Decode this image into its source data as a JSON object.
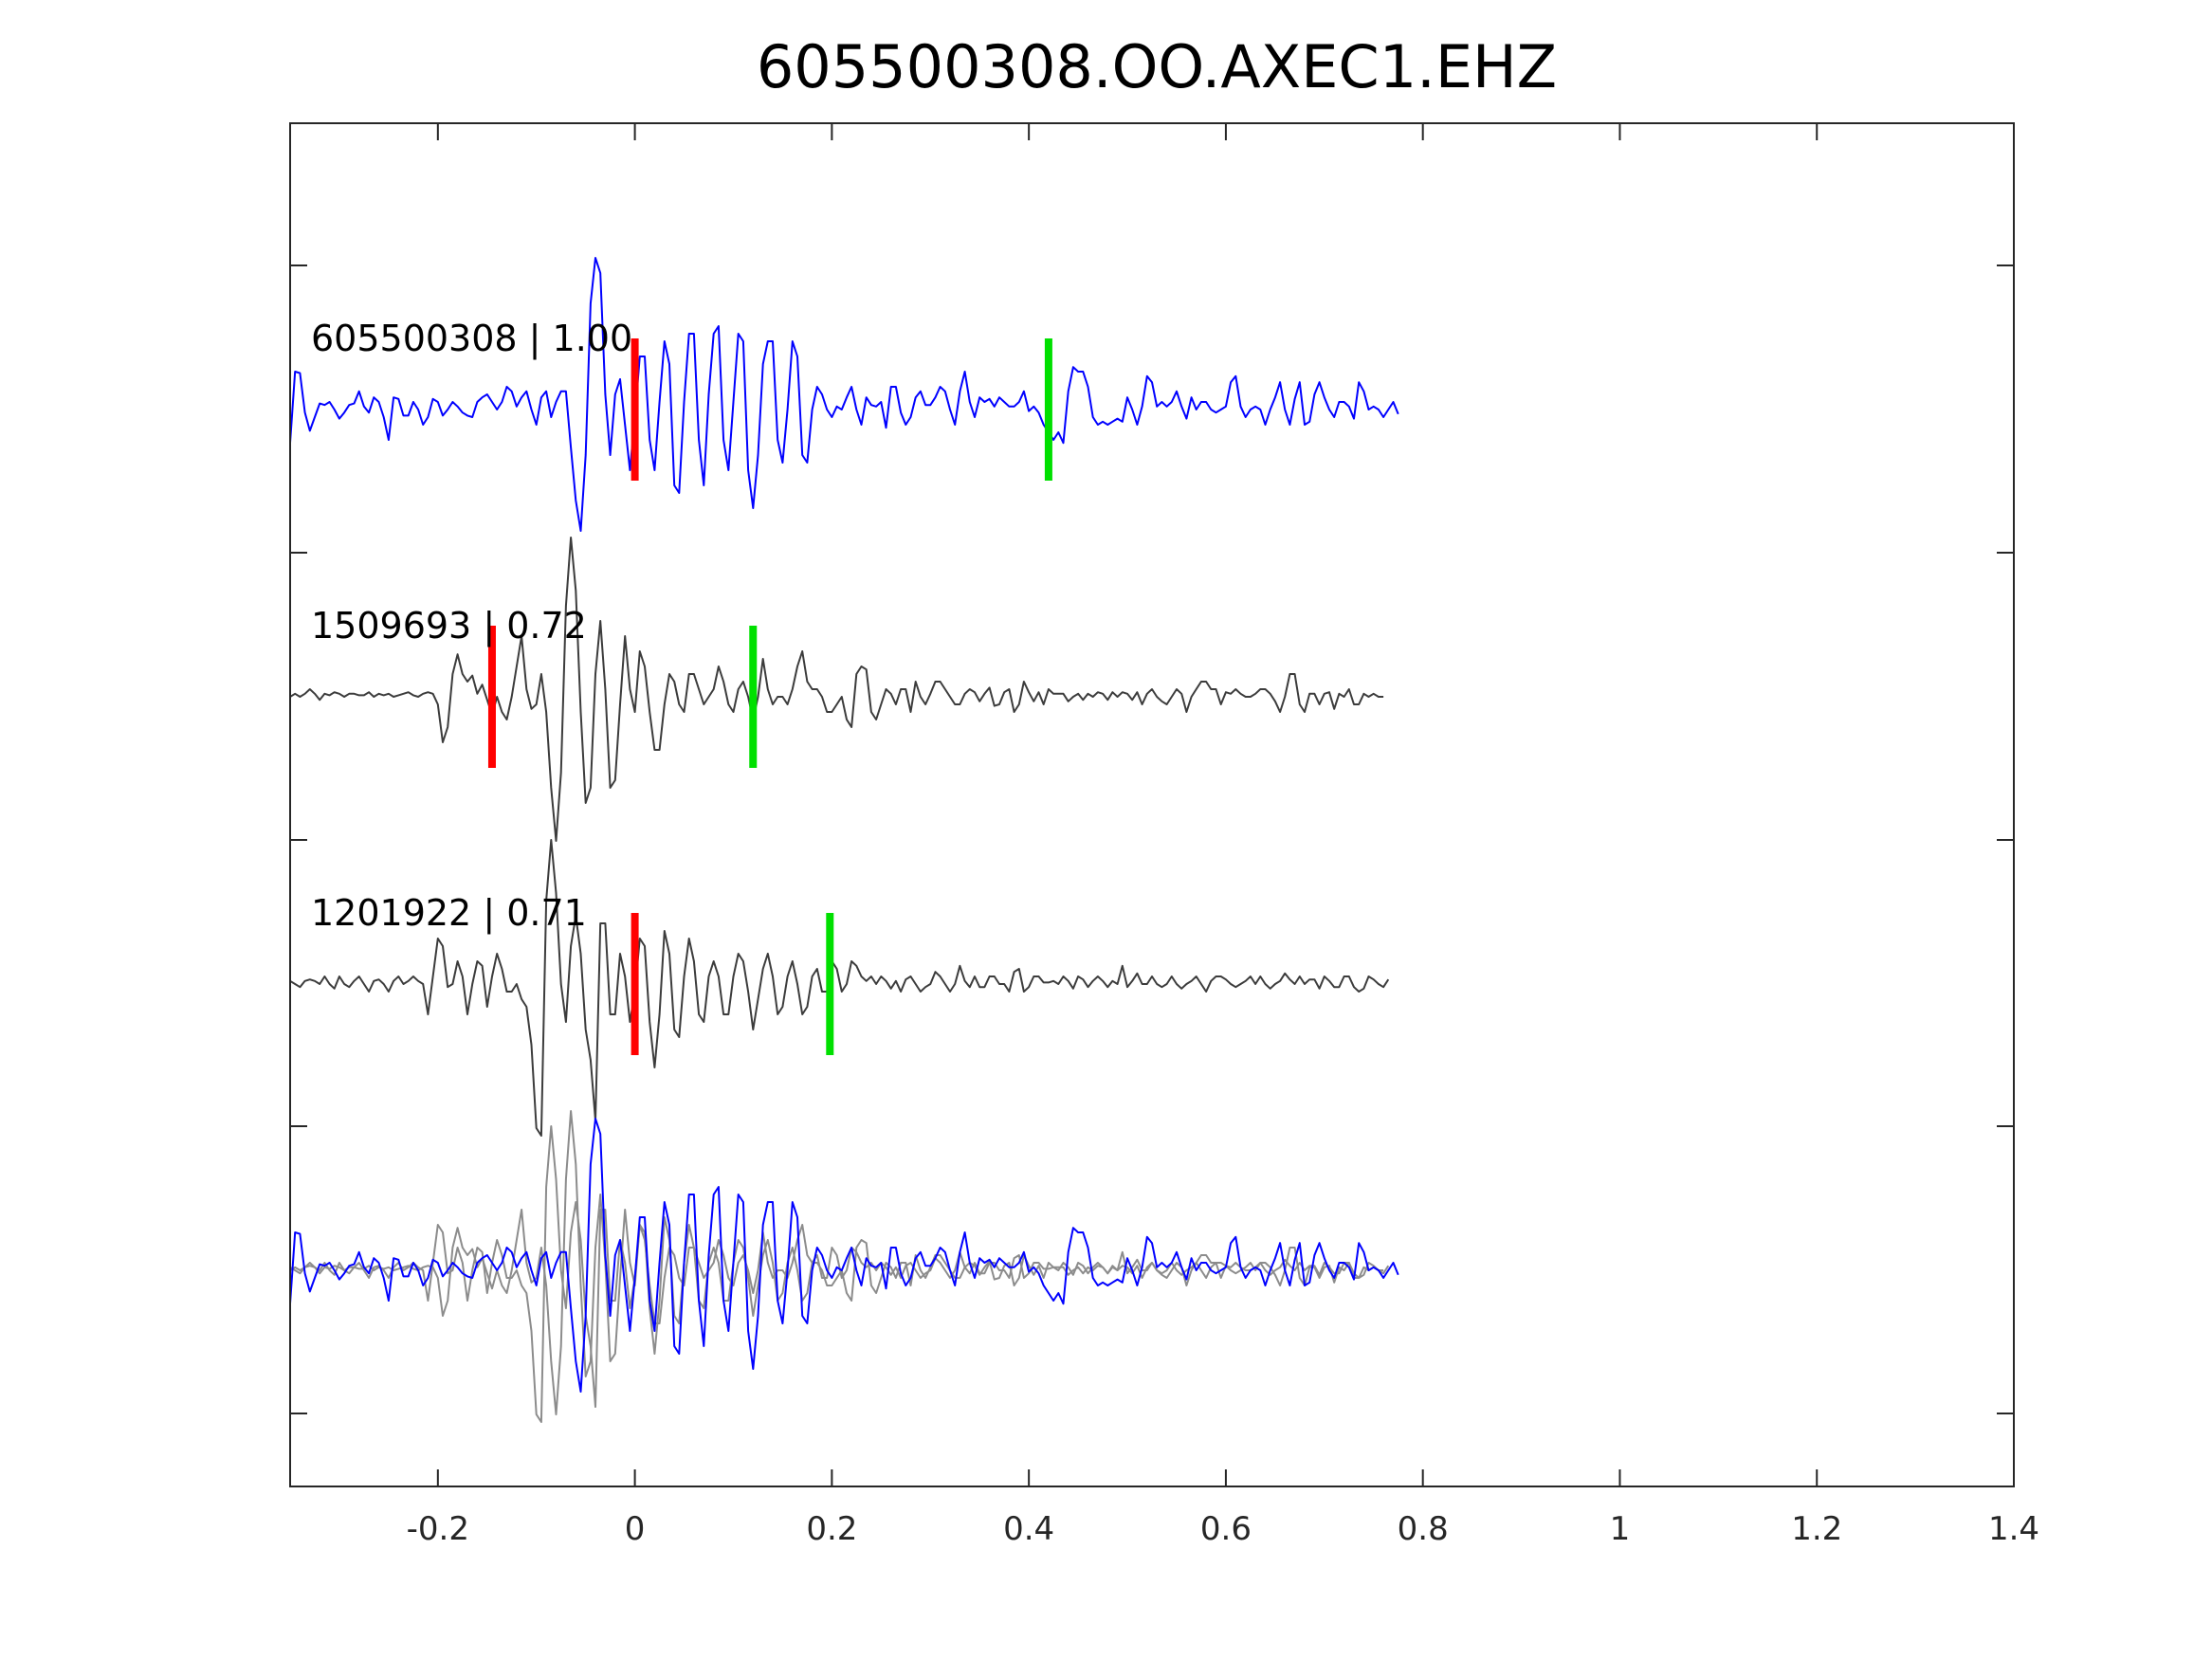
{
  "chart_data": {
    "type": "line",
    "title": "605500308.OO.AXEC1.EHZ",
    "xlabel": "",
    "ylabel": "",
    "xlim": [
      -0.35,
      1.4
    ],
    "x_ticks": [
      -0.2,
      0,
      0.2,
      0.4,
      0.6,
      0.8,
      1,
      1.2,
      1.4
    ],
    "x_tick_labels": [
      "-0.2",
      "0",
      "0.2",
      "0.4",
      "0.6",
      "0.8",
      "1",
      "1.2",
      "1.4"
    ],
    "grid": false,
    "sample_interval": 0.005,
    "colors": {
      "template": "#0000ff",
      "match": "#3c3c3c",
      "overlay_match": "#8c8c8c",
      "p_pick": "#ff0000",
      "s_pick": "#00e000",
      "axes": "#262626"
    },
    "panels": [
      {
        "label": "605500308 | 1.00",
        "event_id": "605500308",
        "correlation": 1.0,
        "trace_color": "template",
        "p_pick": 0.0,
        "s_pick": 0.42,
        "waveform_ref": "template"
      },
      {
        "label": "1509693 | 0.72",
        "event_id": "1509693",
        "correlation": 0.72,
        "trace_color": "match",
        "p_pick": -0.145,
        "s_pick": 0.12,
        "waveform_ref": "match_1509693"
      },
      {
        "label": "1201922 | 0.71",
        "event_id": "1201922",
        "correlation": 0.71,
        "trace_color": "match",
        "p_pick": 0.0,
        "s_pick": 0.198,
        "waveform_ref": "match_1201922"
      },
      {
        "label": "",
        "overlay": true,
        "trace_color": "template",
        "waveform_ref": "overlay"
      }
    ],
    "waveforms": {
      "template": {
        "x_start": -0.35,
        "dx": 0.005,
        "values": [
          -0.22,
          0.25,
          0.24,
          -0.02,
          -0.14,
          -0.05,
          0.04,
          0.03,
          0.05,
          0.0,
          -0.06,
          -0.02,
          0.03,
          0.04,
          0.12,
          0.02,
          -0.02,
          0.08,
          0.05,
          -0.05,
          -0.2,
          0.08,
          0.07,
          -0.04,
          -0.04,
          0.05,
          0.0,
          -0.1,
          -0.05,
          0.07,
          0.05,
          -0.04,
          0.0,
          0.05,
          0.02,
          -0.02,
          -0.04,
          -0.05,
          0.05,
          0.08,
          0.1,
          0.05,
          0.0,
          0.05,
          0.15,
          0.12,
          0.02,
          0.08,
          0.12,
          0.0,
          -0.1,
          0.08,
          0.12,
          -0.05,
          0.05,
          0.12,
          0.12,
          -0.25,
          -0.6,
          -0.8,
          -0.3,
          0.7,
          1.0,
          0.9,
          0.1,
          -0.3,
          0.1,
          0.2,
          -0.1,
          -0.4,
          -0.05,
          0.35,
          0.35,
          -0.2,
          -0.4,
          0.05,
          0.45,
          0.3,
          -0.5,
          -0.55,
          0.05,
          0.5,
          0.5,
          -0.2,
          -0.5,
          0.1,
          0.5,
          0.55,
          -0.2,
          -0.4,
          0.05,
          0.5,
          0.45,
          -0.4,
          -0.65,
          -0.3,
          0.3,
          0.45,
          0.45,
          -0.2,
          -0.35,
          0.0,
          0.45,
          0.35,
          -0.3,
          -0.35,
          0.0,
          0.15,
          0.1,
          0.0,
          -0.05,
          0.02,
          0.0,
          0.08,
          0.15,
          0.0,
          -0.1,
          0.08,
          0.03,
          0.02,
          0.05,
          -0.12,
          0.15,
          0.15,
          -0.02,
          -0.1,
          -0.05,
          0.08,
          0.12,
          0.03,
          0.03,
          0.08,
          0.15,
          0.12,
          0.0,
          -0.1,
          0.12,
          0.25,
          0.05,
          -0.05,
          0.08,
          0.05,
          0.07,
          0.02,
          0.08,
          0.05,
          0.02,
          0.02,
          0.05,
          0.12,
          -0.01,
          0.02,
          -0.02,
          -0.1,
          -0.15,
          -0.2,
          -0.15,
          -0.22,
          0.12,
          0.28,
          0.25,
          0.25,
          0.15,
          -0.05,
          -0.1,
          -0.08,
          -0.1,
          -0.08,
          -0.06,
          -0.08,
          0.08,
          0.0,
          -0.1,
          0.02,
          0.22,
          0.18,
          0.02,
          0.05,
          0.02,
          0.05,
          0.12,
          0.02,
          -0.06,
          0.08,
          0.0,
          0.05,
          0.05,
          0.0,
          -0.02,
          0.0,
          0.02,
          0.18,
          0.22,
          0.02,
          -0.05,
          0.0,
          0.02,
          0.0,
          -0.1,
          0.0,
          0.08,
          0.18,
          0.0,
          -0.1,
          0.07,
          0.18,
          -0.1,
          -0.08,
          0.1,
          0.18,
          0.08,
          0.0,
          -0.05,
          0.05,
          0.05,
          0.02,
          -0.06,
          0.18,
          0.12,
          0.0,
          0.02,
          0.0,
          -0.05,
          0.0,
          0.05,
          -0.03
        ]
      },
      "match_1509693": {
        "x_start": -0.35,
        "dx": 0.005,
        "values": [
          0.0,
          0.02,
          0.0,
          0.02,
          0.05,
          0.02,
          -0.02,
          0.02,
          0.01,
          0.03,
          0.02,
          0.0,
          0.02,
          0.02,
          0.01,
          0.01,
          0.03,
          0.0,
          0.02,
          0.01,
          0.02,
          0.0,
          0.01,
          0.02,
          0.03,
          0.01,
          0.0,
          0.02,
          0.03,
          0.02,
          -0.05,
          -0.3,
          -0.2,
          0.15,
          0.28,
          0.15,
          0.1,
          0.14,
          0.02,
          0.08,
          -0.02,
          -0.12,
          0.0,
          -0.1,
          -0.15,
          0.0,
          0.2,
          0.4,
          0.05,
          -0.08,
          -0.05,
          0.15,
          -0.1,
          -0.6,
          -0.95,
          -0.5,
          0.6,
          1.05,
          0.7,
          -0.1,
          -0.7,
          -0.6,
          0.15,
          0.5,
          0.05,
          -0.6,
          -0.55,
          -0.05,
          0.4,
          0.05,
          -0.1,
          0.3,
          0.2,
          -0.1,
          -0.35,
          -0.35,
          -0.05,
          0.15,
          0.1,
          -0.05,
          -0.1,
          0.15,
          0.15,
          0.05,
          -0.05,
          0.0,
          0.05,
          0.2,
          0.1,
          -0.05,
          -0.1,
          0.05,
          0.1,
          0.0,
          -0.15,
          0.0,
          0.25,
          0.05,
          -0.05,
          0.0,
          0.0,
          -0.05,
          0.05,
          0.2,
          0.3,
          0.1,
          0.05,
          0.05,
          0.0,
          -0.1,
          -0.1,
          -0.05,
          0.0,
          -0.15,
          -0.2,
          0.15,
          0.2,
          0.18,
          -0.1,
          -0.15,
          -0.05,
          0.05,
          0.02,
          -0.05,
          0.05,
          0.05,
          -0.1,
          0.1,
          0.0,
          -0.05,
          0.02,
          0.1,
          0.1,
          0.05,
          0.0,
          -0.05,
          -0.05,
          0.02,
          0.05,
          0.03,
          -0.03,
          0.02,
          0.06,
          -0.06,
          -0.05,
          0.03,
          0.05,
          -0.1,
          -0.05,
          0.1,
          0.03,
          -0.03,
          0.03,
          -0.05,
          0.05,
          0.02,
          0.02,
          0.02,
          -0.03,
          0.0,
          0.02,
          -0.02,
          0.02,
          0.0,
          0.03,
          0.02,
          -0.02,
          0.03,
          0.0,
          0.03,
          0.02,
          -0.02,
          0.03,
          -0.05,
          0.02,
          0.05,
          0.0,
          -0.03,
          -0.05,
          0.0,
          0.05,
          0.02,
          -0.1,
          0.0,
          0.05,
          0.1,
          0.1,
          0.05,
          0.05,
          -0.05,
          0.03,
          0.02,
          0.05,
          0.02,
          0.0,
          0.0,
          0.02,
          0.05,
          0.05,
          0.02,
          -0.03,
          -0.1,
          0.0,
          0.15,
          0.15,
          -0.05,
          -0.1,
          0.02,
          0.02,
          -0.05,
          0.02,
          0.03,
          -0.08,
          0.02,
          0.0,
          0.05,
          -0.05,
          -0.05,
          0.02,
          0.0,
          0.02,
          0.0,
          0.0
        ]
      },
      "match_1201922": {
        "x_start": -0.35,
        "dx": 0.005,
        "values": [
          0.02,
          0.0,
          -0.02,
          0.02,
          0.03,
          0.02,
          0.0,
          0.05,
          0.0,
          -0.03,
          0.05,
          0.0,
          -0.02,
          0.02,
          0.05,
          0.0,
          -0.05,
          0.02,
          0.03,
          0.0,
          -0.05,
          0.02,
          0.05,
          0.0,
          0.02,
          0.05,
          0.02,
          0.0,
          -0.2,
          0.05,
          0.3,
          0.25,
          -0.02,
          0.0,
          0.15,
          0.05,
          -0.2,
          0.0,
          0.15,
          0.12,
          -0.15,
          0.05,
          0.2,
          0.1,
          -0.05,
          -0.05,
          0.0,
          -0.1,
          -0.15,
          -0.4,
          -0.95,
          -1.0,
          0.55,
          0.95,
          0.6,
          0.0,
          -0.25,
          0.25,
          0.45,
          0.2,
          -0.3,
          -0.5,
          -0.9,
          0.4,
          0.4,
          -0.2,
          -0.2,
          0.2,
          0.05,
          -0.25,
          -0.05,
          0.3,
          0.25,
          -0.25,
          -0.55,
          -0.2,
          0.35,
          0.2,
          -0.3,
          -0.35,
          0.05,
          0.3,
          0.15,
          -0.2,
          -0.25,
          0.05,
          0.15,
          0.05,
          -0.2,
          -0.2,
          0.05,
          0.2,
          0.15,
          -0.05,
          -0.3,
          -0.1,
          0.1,
          0.2,
          0.05,
          -0.2,
          -0.15,
          0.05,
          0.15,
          0.0,
          -0.2,
          -0.15,
          0.05,
          0.1,
          -0.05,
          -0.05,
          0.15,
          0.1,
          -0.05,
          0.0,
          0.15,
          0.12,
          0.05,
          0.02,
          0.05,
          0.0,
          0.05,
          0.02,
          -0.03,
          0.02,
          -0.05,
          0.03,
          0.05,
          0.0,
          -0.05,
          -0.02,
          0.0,
          0.08,
          0.05,
          0.0,
          -0.05,
          0.0,
          0.12,
          0.02,
          -0.02,
          0.05,
          -0.02,
          -0.02,
          0.05,
          0.05,
          0.0,
          0.0,
          -0.05,
          0.08,
          0.1,
          -0.05,
          -0.02,
          0.05,
          0.05,
          0.01,
          0.01,
          0.02,
          0.0,
          0.05,
          0.02,
          -0.03,
          0.05,
          0.03,
          -0.02,
          0.02,
          0.05,
          0.02,
          -0.02,
          0.02,
          0.0,
          0.12,
          -0.02,
          0.02,
          0.07,
          0.0,
          0.0,
          0.05,
          0.0,
          -0.02,
          0.0,
          0.05,
          0.0,
          -0.03,
          0.0,
          0.02,
          0.05,
          0.0,
          -0.05,
          0.02,
          0.05,
          0.05,
          0.03,
          0.0,
          -0.02,
          0.0,
          0.02,
          0.05,
          0.0,
          0.05,
          0.0,
          -0.03,
          0.0,
          0.02,
          0.07,
          0.03,
          0.0,
          0.05,
          0.0,
          0.03,
          0.03,
          -0.03,
          0.05,
          0.02,
          -0.02,
          -0.02,
          0.05,
          0.05,
          -0.02,
          -0.05,
          -0.03,
          0.05,
          0.03,
          0.0,
          -0.02,
          0.03
        ]
      },
      "overlay": {
        "traces": [
          "match_1509693",
          "match_1201922",
          "template"
        ],
        "colors": [
          "overlay_match",
          "overlay_match",
          "template"
        ]
      }
    }
  }
}
